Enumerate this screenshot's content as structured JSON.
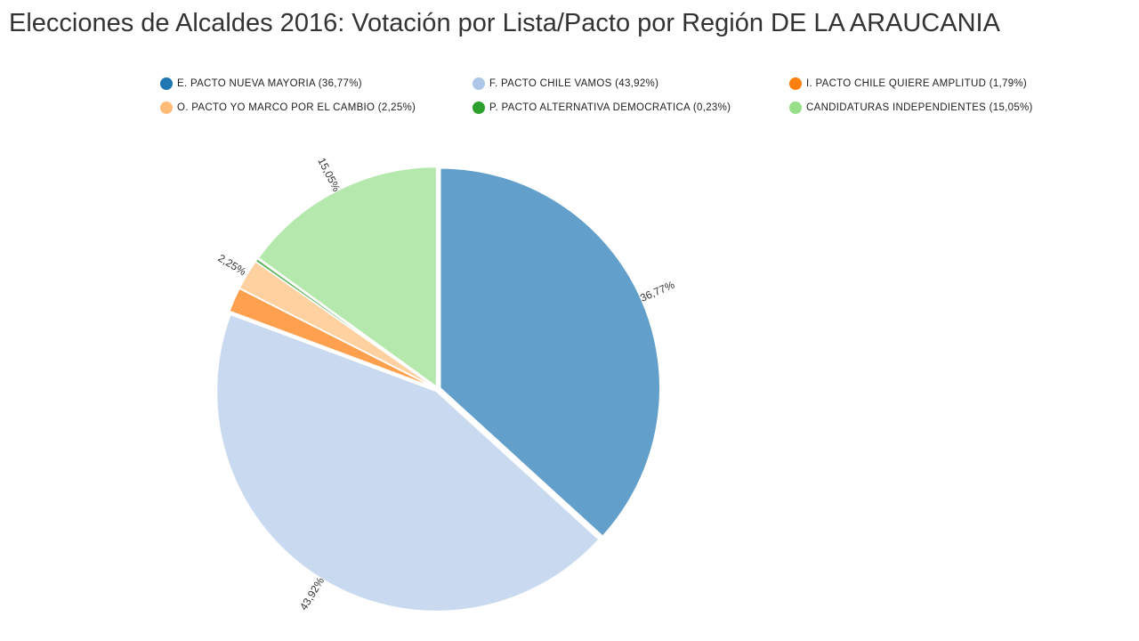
{
  "header": {
    "title": "Elecciones de Alcaldes 2016: Votación por Lista/Pacto por Región DE LA ARAUCANIA"
  },
  "legend": {
    "items": [
      {
        "label": "E. PACTO NUEVA MAYORIA (36,77%)",
        "color": "#1f77b4"
      },
      {
        "label": "F. PACTO CHILE VAMOS (43,92%)",
        "color": "#aec7e8"
      },
      {
        "label": "I. PACTO CHILE QUIERE AMPLITUD (1,79%)",
        "color": "#ff7f0e"
      },
      {
        "label": "O. PACTO YO MARCO POR EL CAMBIO (2,25%)",
        "color": "#ffbb78"
      },
      {
        "label": "P. PACTO ALTERNATIVA DEMOCRATICA (0,23%)",
        "color": "#2ca02c"
      },
      {
        "label": "CANDIDATURAS INDEPENDIENTES (15,05%)",
        "color": "#98df8a"
      }
    ]
  },
  "chart_data": {
    "type": "pie",
    "title": "Elecciones de Alcaldes 2016: Votación por Lista/Pacto por Región DE LA ARAUCANIA",
    "categories": [
      "E. PACTO NUEVA MAYORIA",
      "F. PACTO CHILE VAMOS",
      "I. PACTO CHILE QUIERE AMPLITUD",
      "O. PACTO YO MARCO POR EL CAMBIO",
      "P. PACTO ALTERNATIVA DEMOCRATICA",
      "CANDIDATURAS INDEPENDIENTES"
    ],
    "values": [
      36.77,
      43.92,
      1.79,
      2.25,
      0.23,
      15.05
    ],
    "data_labels": [
      "36,77%",
      "43,92%",
      "",
      "2,25%",
      "",
      "15,05%"
    ],
    "colors": [
      "#62a0cb",
      "#c8d9f0",
      "#ffa04f",
      "#ffd0a0",
      "#5fb55f",
      "#b5e8ad"
    ],
    "legend_position": "top",
    "start": "top, clockwise"
  }
}
